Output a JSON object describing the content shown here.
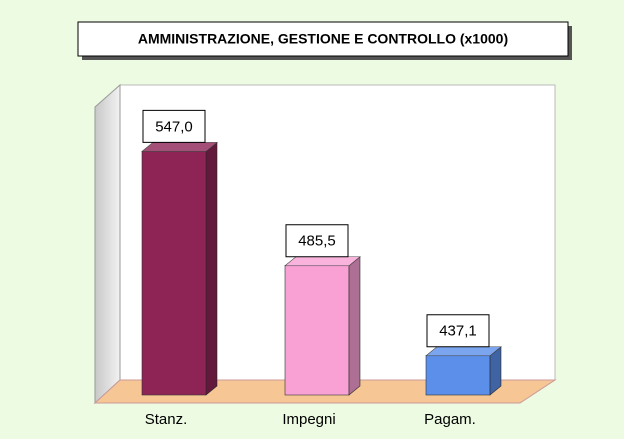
{
  "chart_data": {
    "type": "bar3d",
    "title": "AMMINISTRAZIONE, GESTIONE E CONTROLLO (x1000)",
    "categories": [
      "Stanz.",
      "Impegni",
      "Pagam."
    ],
    "values": [
      547.0,
      485.5,
      437.1
    ],
    "value_labels": [
      "547,0",
      "485,5",
      "437,1"
    ],
    "colors": [
      "#8e2456",
      "#f9a0d4",
      "#5b8fea"
    ],
    "ylim": [
      416,
      580
    ]
  }
}
